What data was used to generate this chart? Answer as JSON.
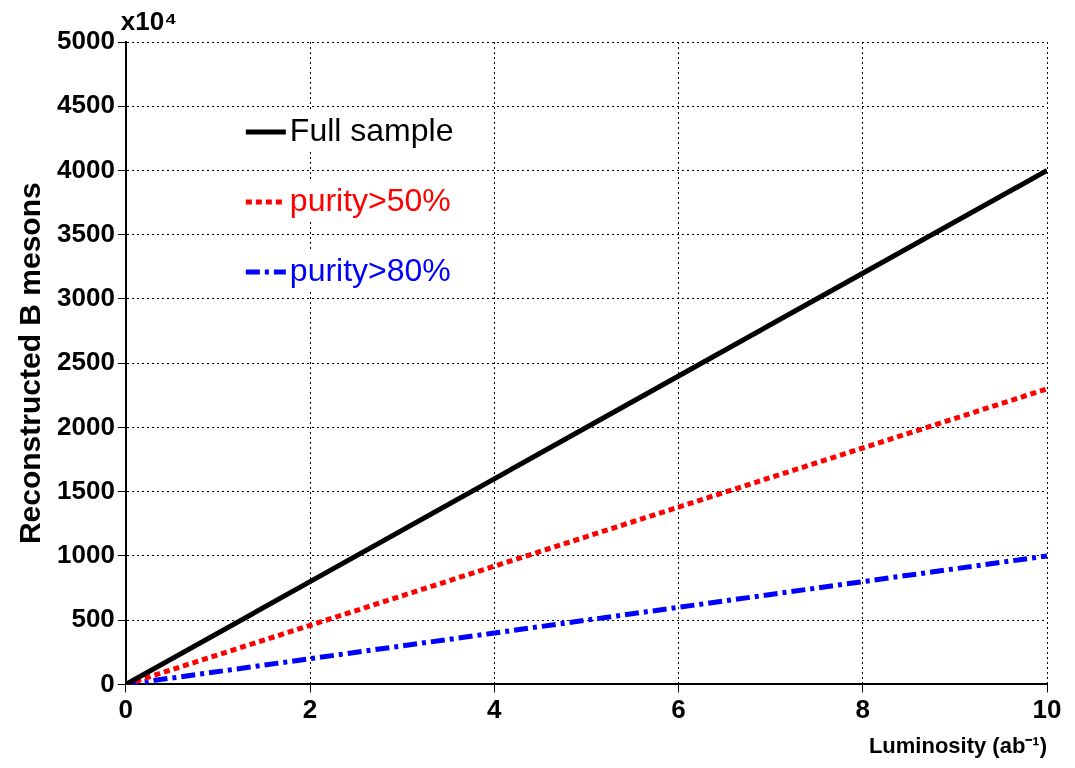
{
  "chart_data": {
    "type": "line",
    "xlabel": "Luminosity (ab⁻¹)",
    "ylabel": "Reconstructed B mesons",
    "annotations": [
      "x10⁴"
    ],
    "xlim": [
      0,
      10
    ],
    "xticks": [
      0,
      2,
      4,
      6,
      8,
      10
    ],
    "ylim": [
      0,
      5000
    ],
    "yticks": [
      0,
      500,
      1000,
      1500,
      2000,
      2500,
      3000,
      3500,
      4000,
      4500,
      5000
    ],
    "grid": true,
    "legend": "top left",
    "marker": "none",
    "x": [
      0,
      2,
      4,
      6,
      8,
      10
    ],
    "series": [
      {
        "name": "Full sample",
        "color": "#000000",
        "line_style": "solid",
        "values": [
          0,
          800,
          1600,
          2400,
          3200,
          4000
        ]
      },
      {
        "name": "purity>50%",
        "color": "#ff0000",
        "line_style": "dotted",
        "values": [
          0,
          460,
          920,
          1380,
          1840,
          2300
        ]
      },
      {
        "name": "purity>80%",
        "color": "#0000ff",
        "line_style": "dashed",
        "values": [
          0,
          200,
          400,
          600,
          800,
          1000
        ]
      }
    ]
  }
}
